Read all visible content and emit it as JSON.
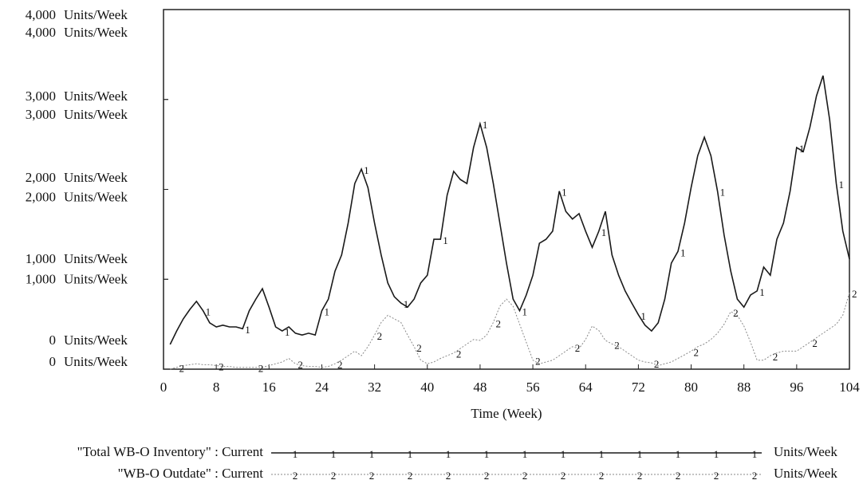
{
  "chart_data": {
    "type": "line",
    "x_label": "Time (Week)",
    "x": [
      1,
      2,
      3,
      4,
      5,
      6,
      7,
      8,
      9,
      10,
      11,
      12,
      13,
      14,
      15,
      16,
      17,
      18,
      19,
      20,
      21,
      22,
      23,
      24,
      25,
      26,
      27,
      28,
      29,
      30,
      31,
      32,
      33,
      34,
      35,
      36,
      37,
      38,
      39,
      40,
      41,
      42,
      43,
      44,
      45,
      46,
      47,
      48,
      49,
      50,
      51,
      52,
      53,
      54,
      55,
      56,
      57,
      58,
      59,
      60,
      61,
      62,
      63,
      64,
      65,
      66,
      67,
      68,
      69,
      70,
      71,
      72,
      73,
      74,
      75,
      76,
      77,
      78,
      79,
      80,
      81,
      82,
      83,
      84,
      85,
      86,
      87,
      88,
      89,
      90,
      91,
      92,
      93,
      94,
      95,
      96,
      97,
      98,
      99,
      100,
      101,
      102,
      103,
      104
    ],
    "xlim": [
      0,
      104
    ],
    "xticks": [
      0,
      8,
      16,
      24,
      32,
      40,
      48,
      56,
      64,
      72,
      80,
      88,
      96,
      104
    ],
    "ylim": [
      0,
      4000
    ],
    "yticks": [
      {
        "value": 0,
        "label": "0"
      },
      {
        "value": 1000,
        "label": "1,000"
      },
      {
        "value": 2000,
        "label": "2,000"
      },
      {
        "value": 3000,
        "label": "3,000"
      },
      {
        "value": 4000,
        "label": "4,000"
      }
    ],
    "y2lim": [
      0,
      4000
    ],
    "y2ticks": [
      {
        "value": 0,
        "label": "0"
      },
      {
        "value": 1000,
        "label": "1,000"
      },
      {
        "value": 2000,
        "label": "2,000"
      },
      {
        "value": 3000,
        "label": "3,000"
      },
      {
        "value": 4000,
        "label": "4,000"
      }
    ],
    "series": [
      {
        "name": "\"Total WB-O Inventory\" : Current",
        "marker": "1",
        "unit": "Units/Week",
        "color": "#1a1a1a",
        "values": [
          275,
          425,
          560,
          665,
          755,
          650,
          515,
          470,
          490,
          470,
          470,
          450,
          650,
          780,
          895,
          690,
          470,
          425,
          470,
          400,
          380,
          400,
          380,
          650,
          780,
          1090,
          1270,
          1625,
          2065,
          2225,
          2020,
          1625,
          1270,
          960,
          805,
          735,
          690,
          780,
          960,
          1045,
          1445,
          1445,
          1935,
          2200,
          2110,
          2065,
          2465,
          2730,
          2465,
          2065,
          1625,
          1180,
          780,
          650,
          825,
          1045,
          1400,
          1445,
          1535,
          1980,
          1755,
          1670,
          1730,
          1535,
          1355,
          1535,
          1755,
          1270,
          1045,
          870,
          735,
          605,
          490,
          425,
          515,
          780,
          1180,
          1310,
          1625,
          2020,
          2375,
          2580,
          2375,
          1980,
          1490,
          1090,
          780,
          690,
          825,
          870,
          1135,
          1045,
          1445,
          1625,
          1980,
          2465,
          2420,
          2690,
          3040,
          3265,
          2775,
          2065,
          1535,
          1225
        ]
      },
      {
        "name": "\"WB-O Outdate\" : Current",
        "marker": "2",
        "unit": "Units/Week",
        "color": "#8a8a8a",
        "axis": "y2",
        "values": [
          0,
          20,
          40,
          50,
          60,
          50,
          50,
          40,
          30,
          30,
          20,
          20,
          20,
          20,
          20,
          40,
          60,
          80,
          120,
          60,
          40,
          30,
          30,
          20,
          30,
          60,
          100,
          150,
          200,
          150,
          250,
          380,
          520,
          600,
          560,
          520,
          380,
          250,
          100,
          60,
          80,
          120,
          150,
          180,
          230,
          280,
          330,
          320,
          380,
          520,
          700,
          780,
          700,
          500,
          300,
          100,
          60,
          80,
          100,
          150,
          200,
          250,
          230,
          330,
          480,
          430,
          320,
          280,
          250,
          200,
          150,
          100,
          80,
          70,
          40,
          60,
          80,
          120,
          160,
          200,
          250,
          280,
          330,
          400,
          500,
          640,
          600,
          480,
          300,
          100,
          100,
          150,
          180,
          200,
          200,
          200,
          250,
          300,
          350,
          400,
          450,
          500,
          600,
          850
        ]
      }
    ]
  }
}
